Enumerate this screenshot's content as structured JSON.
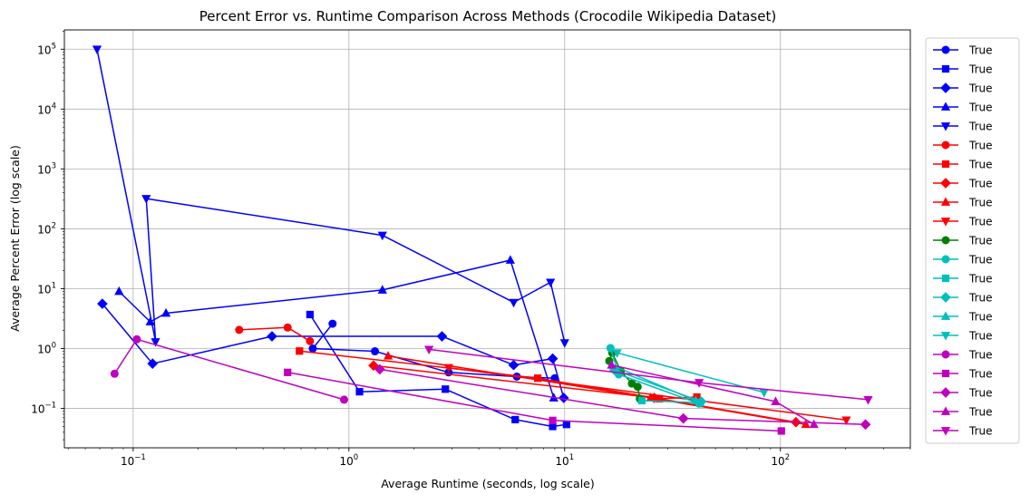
{
  "chart_data": {
    "type": "line",
    "title": "Percent Error vs. Runtime Comparison Across Methods (Crocodile Wikipedia Dataset)",
    "xlabel": "Average Runtime (seconds, log scale)",
    "ylabel": "Average Percent Error (log scale)",
    "xscale": "log",
    "yscale": "log",
    "xlim": [
      0.048,
      400
    ],
    "ylim": [
      0.022,
      210000
    ],
    "xticks": [
      {
        "value": 0.1,
        "base": "10",
        "exp": "−1"
      },
      {
        "value": 1,
        "base": "10",
        "exp": "0"
      },
      {
        "value": 10,
        "base": "10",
        "exp": "1"
      },
      {
        "value": 100,
        "base": "10",
        "exp": "2"
      }
    ],
    "yticks": [
      {
        "value": 0.1,
        "base": "10",
        "exp": "−1"
      },
      {
        "value": 1,
        "base": "10",
        "exp": "0"
      },
      {
        "value": 10,
        "base": "10",
        "exp": "1"
      },
      {
        "value": 100,
        "base": "10",
        "exp": "2"
      },
      {
        "value": 1000,
        "base": "10",
        "exp": "3"
      },
      {
        "value": 10000,
        "base": "10",
        "exp": "4"
      },
      {
        "value": 100000,
        "base": "10",
        "exp": "5"
      }
    ],
    "grid": true,
    "legend_position": "outside right",
    "series": [
      {
        "name": "True",
        "color": "#0000ff",
        "marker": "circle",
        "x": [
          0.84,
          0.68,
          1.32,
          2.9,
          6.0,
          9.0
        ],
        "y": [
          2.6,
          1.0,
          0.9,
          0.4,
          0.34,
          0.32
        ]
      },
      {
        "name": "True",
        "color": "#0000ff",
        "marker": "square",
        "x": [
          0.66,
          1.12,
          2.8,
          5.9,
          8.8,
          10.2
        ],
        "y": [
          3.7,
          0.19,
          0.21,
          0.065,
          0.05,
          0.054
        ]
      },
      {
        "name": "True",
        "color": "#0000ff",
        "marker": "diamond",
        "x": [
          0.072,
          0.123,
          0.44,
          2.7,
          5.8,
          8.8,
          9.9
        ],
        "y": [
          5.6,
          0.56,
          1.6,
          1.6,
          0.53,
          0.68,
          0.15
        ]
      },
      {
        "name": "True",
        "color": "#0000ff",
        "marker": "triangle-up",
        "x": [
          0.086,
          0.12,
          0.142,
          1.43,
          5.6,
          8.9
        ],
        "y": [
          9.0,
          2.8,
          3.9,
          9.5,
          30.0,
          0.15
        ]
      },
      {
        "name": "True",
        "color": "#0000ff",
        "marker": "triangle-down",
        "x": [
          0.068,
          0.127,
          0.115,
          1.43,
          5.8,
          8.6,
          10.0
        ],
        "y": [
          100000.0,
          1.3,
          320.0,
          78.0,
          5.9,
          12.8,
          1.25
        ]
      },
      {
        "name": "True",
        "color": "#ff0000",
        "marker": "circle",
        "x": [
          0.31,
          0.52,
          0.66
        ],
        "y": [
          2.05,
          2.25,
          1.33
        ]
      },
      {
        "name": "True",
        "color": "#ff0000",
        "marker": "square",
        "x": [
          0.59,
          7.5,
          27.5,
          41.0
        ],
        "y": [
          0.91,
          0.32,
          0.145,
          0.155
        ]
      },
      {
        "name": "True",
        "color": "#ff0000",
        "marker": "diamond",
        "x": [
          1.3,
          26.0,
          118.0
        ],
        "y": [
          0.52,
          0.15,
          0.059
        ]
      },
      {
        "name": "True",
        "color": "#ff0000",
        "marker": "triangle-up",
        "x": [
          1.52,
          25.0,
          131.0
        ],
        "y": [
          0.75,
          0.15,
          0.054
        ]
      },
      {
        "name": "True",
        "color": "#ff0000",
        "marker": "triangle-down",
        "x": [
          2.9,
          202.0
        ],
        "y": [
          0.48,
          0.064
        ]
      },
      {
        "name": "True",
        "color": "#008000",
        "marker": "circle",
        "x": [
          16.1,
          16.6,
          18.2,
          20.5,
          21.8,
          22.3
        ],
        "y": [
          0.62,
          0.85,
          0.42,
          0.26,
          0.23,
          0.145
        ]
      },
      {
        "name": "True",
        "color": "#00bfbf",
        "marker": "circle",
        "x": [
          16.3,
          17.8,
          42.0
        ],
        "y": [
          1.02,
          0.37,
          0.12
        ]
      },
      {
        "name": "True",
        "color": "#00bfbf",
        "marker": "square",
        "x": [
          22.8,
          42.5
        ],
        "y": [
          0.135,
          0.125
        ]
      },
      {
        "name": "True",
        "color": "#00bfbf",
        "marker": "diamond",
        "x": [
          17.0,
          43.0
        ],
        "y": [
          0.44,
          0.13
        ]
      },
      {
        "name": "True",
        "color": "#00bfbf",
        "marker": "triangle-up",
        "x": [
          16.5,
          40.5
        ],
        "y": [
          0.53,
          0.135
        ]
      },
      {
        "name": "True",
        "color": "#00bfbf",
        "marker": "triangle-down",
        "x": [
          17.5,
          84.0
        ],
        "y": [
          0.85,
          0.185
        ]
      },
      {
        "name": "True",
        "color": "#bf00bf",
        "marker": "circle",
        "x": [
          0.082,
          0.104,
          0.95
        ],
        "y": [
          0.38,
          1.43,
          0.14
        ]
      },
      {
        "name": "True",
        "color": "#bf00bf",
        "marker": "square",
        "x": [
          0.52,
          8.8,
          101.0
        ],
        "y": [
          0.4,
          0.063,
          0.042
        ]
      },
      {
        "name": "True",
        "color": "#bf00bf",
        "marker": "diamond",
        "x": [
          1.39,
          35.5,
          248.0
        ],
        "y": [
          0.45,
          0.068,
          0.054
        ]
      },
      {
        "name": "True",
        "color": "#bf00bf",
        "marker": "triangle-up",
        "x": [
          16.5,
          95.0,
          143.0
        ],
        "y": [
          0.53,
          0.13,
          0.054
        ]
      },
      {
        "name": "True",
        "color": "#bf00bf",
        "marker": "triangle-down",
        "x": [
          2.35,
          42.0,
          255.0
        ],
        "y": [
          0.97,
          0.27,
          0.14
        ]
      }
    ]
  }
}
